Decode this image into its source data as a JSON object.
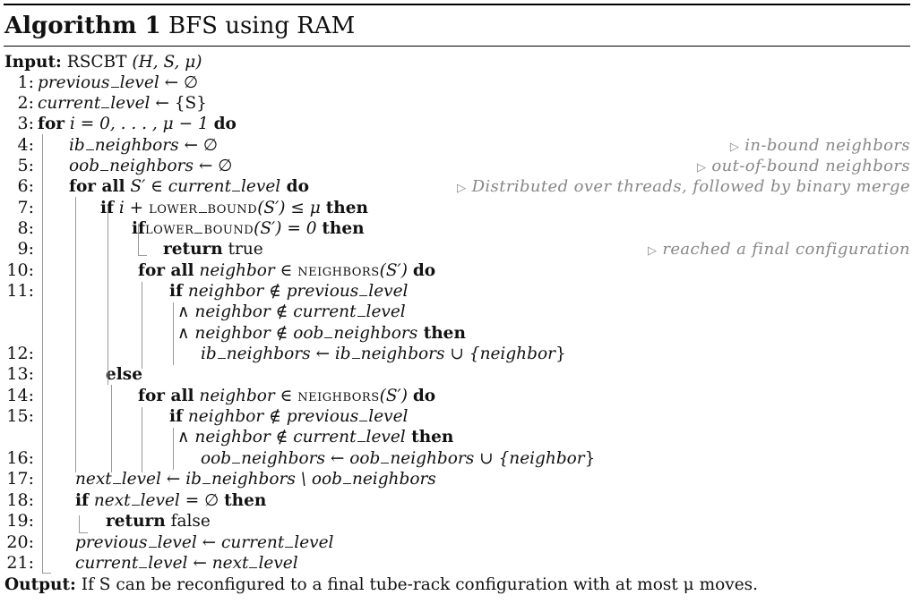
{
  "title": {
    "prefix": "Algorithm 1",
    "text": "BFS using RAM"
  },
  "input": {
    "label": "Input:",
    "name": "RSCBT",
    "args": "(H, S, μ)"
  },
  "lines": [
    {
      "n": "1:",
      "a": "previous",
      "b": "level",
      "op": " ← ∅"
    },
    {
      "n": "2:",
      "a": "current",
      "b": "level",
      "op": " ← {S}"
    },
    {
      "n": "3:",
      "kw1": "for",
      "mid": " i = 0, . . . , μ − 1 ",
      "kw2": "do"
    },
    {
      "n": "4:",
      "a": "ib",
      "b": "neighbors",
      "op": " ← ∅",
      "cmt": "in-bound neighbors"
    },
    {
      "n": "5:",
      "a": "oob",
      "b": "neighbors",
      "op": " ← ∅",
      "cmt": "out-of-bound neighbors"
    },
    {
      "n": "6:",
      "kw1": "for all",
      "mid": " S′ ∈ ",
      "a": "current",
      "b": "level",
      "kw2": " do",
      "cmt": "Distributed over threads, followed by binary merge"
    },
    {
      "n": "7:",
      "kw1": "if",
      "mid": " i + ",
      "sc1": "lower",
      "sc2": "bound",
      "tail": "(S′) ≤ μ ",
      "kw2": "then"
    },
    {
      "n": "8:",
      "kw1": "if",
      "sc1": "lower",
      "sc2": "bound",
      "tail": "(S′) = 0 ",
      "kw2": "then"
    },
    {
      "n": "9:",
      "kw1": "return",
      "tail": " true",
      "cmt": "reached a final configuration"
    },
    {
      "n": "10:",
      "kw1": "for all",
      "it1": " neighbor",
      "mid": " ∈ ",
      "sc1": "neighbors",
      "tail": "(S′) ",
      "kw2": "do"
    },
    {
      "n": "11:",
      "kw1": "if",
      "it1": " neighbor",
      "mid": " ∉ ",
      "a": "previous",
      "b": "level"
    },
    {
      "n": "",
      "pre": "∧ ",
      "it1": "neighbor",
      "mid": " ∉ ",
      "a": "current",
      "b": "level"
    },
    {
      "n": "",
      "pre": "∧ ",
      "it1": "neighbor",
      "mid": " ∉ ",
      "a": "oob",
      "b": "neighbors",
      "kw2": " then"
    },
    {
      "n": "12:",
      "a": "ib",
      "b": "neighbors",
      "op": " ← ",
      "a2": "ib",
      "b2": "neighbors",
      "tail": "  ∪ {",
      "it2": "neighbor",
      "end": "}"
    },
    {
      "n": "13:",
      "kw1": "else"
    },
    {
      "n": "14:",
      "kw1": "for all",
      "it1": " neighbor",
      "mid": " ∈ ",
      "sc1": "neighbors",
      "tail": "(S′) ",
      "kw2": "do"
    },
    {
      "n": "15:",
      "kw1": "if",
      "it1": " neighbor",
      "mid": " ∉ ",
      "a": "previous",
      "b": "level"
    },
    {
      "n": "",
      "pre": "∧ ",
      "it1": "neighbor",
      "mid": " ∉ ",
      "a": "current",
      "b": "level",
      "kw2": " then"
    },
    {
      "n": "16:",
      "a": "oob",
      "b": "neighbors",
      "op": " ← ",
      "a2": "oob",
      "b2": "neighbors",
      "tail": "  ∪ {",
      "it2": "neighbor",
      "end": "}"
    },
    {
      "n": "17:",
      "a": "next",
      "b": "level",
      "op": " ← ",
      "a2": "ib",
      "b2": "neighbors",
      "tail": " \\ ",
      "a3": "oob",
      "b3": "neighbors"
    },
    {
      "n": "18:",
      "kw1": "if",
      "a": " next",
      "b": "level",
      "op": " = ∅ ",
      "kw2": "then"
    },
    {
      "n": "19:",
      "kw1": "return",
      "tail": " false"
    },
    {
      "n": "20:",
      "a": "previous",
      "b": "level",
      "op": " ← ",
      "a2": "current",
      "b2": "level"
    },
    {
      "n": "21:",
      "a": "current",
      "b": "level",
      "op": " ← ",
      "a2": "next",
      "b2": "level"
    }
  ],
  "output": {
    "label": "Output:",
    "text": "If S can be reconfigured to a final tube-rack configuration with at most μ moves."
  }
}
